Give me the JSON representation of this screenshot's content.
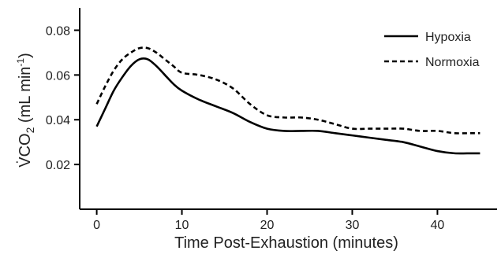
{
  "chart_data": {
    "type": "line",
    "xlabel": "Time Post-Exhaustion (minutes)",
    "ylabel": {
      "prefix": "V̇CO",
      "subscript": "2",
      "units_prefix": " (mL min",
      "units_superscript": "-1",
      "units_suffix": ")"
    },
    "xlim": [
      -2,
      47
    ],
    "ylim": [
      0.0,
      0.09
    ],
    "xticks": [
      0,
      10,
      20,
      30,
      40
    ],
    "xtick_labels": [
      "0",
      "10",
      "20",
      "30",
      "40"
    ],
    "yticks": [
      0.02,
      0.04,
      0.06,
      0.08
    ],
    "ytick_labels": [
      "0.02",
      "0.04",
      "0.06",
      "0.08"
    ],
    "grid": false,
    "legend_position": "top-right",
    "series": [
      {
        "name": "Hypoxia",
        "style": "solid",
        "color": "#000000",
        "x": [
          0,
          1,
          2,
          3,
          4,
          5,
          6,
          7,
          8,
          9,
          10,
          12,
          14,
          16,
          18,
          20,
          22,
          24,
          26,
          28,
          30,
          32,
          34,
          36,
          38,
          40,
          42,
          44,
          45
        ],
        "values": [
          0.037,
          0.045,
          0.053,
          0.059,
          0.064,
          0.067,
          0.067,
          0.064,
          0.06,
          0.056,
          0.053,
          0.049,
          0.046,
          0.043,
          0.039,
          0.036,
          0.035,
          0.035,
          0.035,
          0.034,
          0.033,
          0.032,
          0.031,
          0.03,
          0.028,
          0.026,
          0.025,
          0.025,
          0.025
        ]
      },
      {
        "name": "Normoxia",
        "style": "dashed",
        "color": "#000000",
        "x": [
          0,
          1,
          2,
          3,
          4,
          5,
          6,
          7,
          8,
          9,
          10,
          12,
          14,
          16,
          18,
          20,
          22,
          24,
          26,
          28,
          30,
          32,
          34,
          36,
          38,
          40,
          42,
          44,
          45
        ],
        "values": [
          0.047,
          0.055,
          0.062,
          0.067,
          0.07,
          0.072,
          0.072,
          0.07,
          0.067,
          0.064,
          0.061,
          0.06,
          0.058,
          0.054,
          0.047,
          0.042,
          0.041,
          0.041,
          0.04,
          0.038,
          0.036,
          0.036,
          0.036,
          0.036,
          0.035,
          0.035,
          0.034,
          0.034,
          0.034
        ]
      }
    ]
  }
}
